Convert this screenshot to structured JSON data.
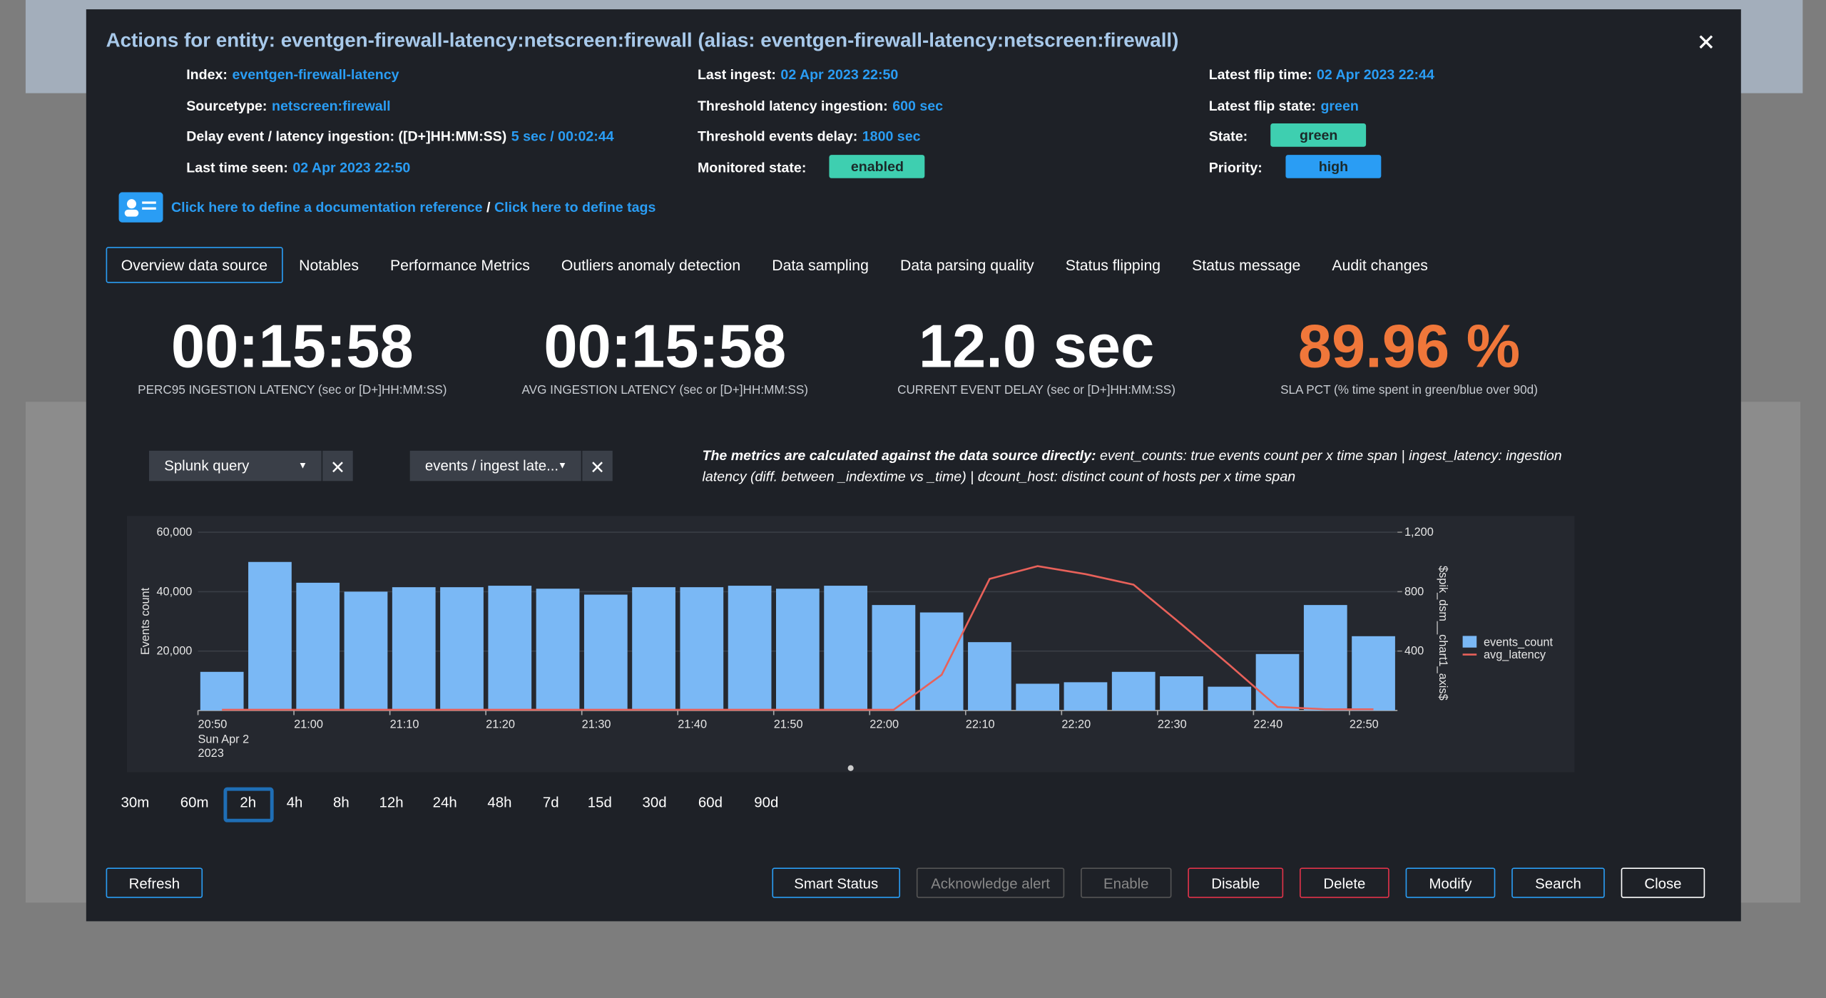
{
  "title": "Actions for entity: eventgen-firewall-latency:netscreen:firewall (alias: eventgen-firewall-latency:netscreen:firewall)",
  "info": {
    "index": {
      "label": "Index:",
      "value": "eventgen-firewall-latency"
    },
    "sourcetype": {
      "label": "Sourcetype:",
      "value": "netscreen:firewall"
    },
    "delay": {
      "label": "Delay event / latency ingestion: ([D+]HH:MM:SS)",
      "value": "5 sec / 00:02:44"
    },
    "last_seen": {
      "label": "Last time seen:",
      "value": "02 Apr 2023 22:50"
    },
    "last_ingest": {
      "label": "Last ingest:",
      "value": "02 Apr 2023 22:50"
    },
    "threshold_latency": {
      "label": "Threshold latency ingestion:",
      "value": "600 sec"
    },
    "threshold_delay": {
      "label": "Threshold events delay:",
      "value": "1800 sec"
    },
    "monitored_state": {
      "label": "Monitored state:",
      "value": "enabled"
    },
    "latest_flip_time": {
      "label": "Latest flip time:",
      "value": "02 Apr 2023 22:44"
    },
    "latest_flip_state": {
      "label": "Latest flip state:",
      "value": "green"
    },
    "state": {
      "label": "State:",
      "value": "green"
    },
    "priority": {
      "label": "Priority:",
      "value": "high"
    }
  },
  "links": {
    "doc": "Click here to define a documentation reference",
    "sep": "/",
    "tags": "Click here to define tags"
  },
  "tabs": [
    "Overview data source",
    "Notables",
    "Performance Metrics",
    "Outliers anomaly detection",
    "Data sampling",
    "Data parsing quality",
    "Status flipping",
    "Status message",
    "Audit changes"
  ],
  "active_tab": 0,
  "kpis": [
    {
      "value": "00:15:58",
      "label": "PERC95 INGESTION LATENCY (sec or [D+]HH:MM:SS)",
      "color": "#ffffff"
    },
    {
      "value": "00:15:58",
      "label": "AVG INGESTION LATENCY (sec or [D+]HH:MM:SS)",
      "color": "#ffffff"
    },
    {
      "value": "12.0 sec",
      "label": "CURRENT EVENT DELAY (sec or [D+]HH:MM:SS)",
      "color": "#ffffff"
    },
    {
      "value": "89.96 %",
      "label": "SLA PCT (% time spent in green/blue over 90d)",
      "color": "#f0773a"
    }
  ],
  "filters": [
    "Splunk query",
    "events / ingest late..."
  ],
  "note": {
    "bold": "The metrics are calculated against the data source directly:",
    "text": " event_counts: true events count per x time span | ingest_latency: ingestion latency (diff. between _indextime vs _time) | dcount_host: distinct count of hosts per x time span"
  },
  "chart_data": {
    "type": "bar",
    "ylabel": "Events count",
    "y2label": "$spik_dsm__chart1_axis$",
    "categories": [
      "20:50",
      null,
      "21:00",
      null,
      "21:10",
      null,
      "21:20",
      null,
      "21:30",
      null,
      "21:40",
      null,
      "21:50",
      null,
      "22:00",
      null,
      "22:10",
      null,
      "22:20",
      null,
      "22:30",
      null,
      "22:40",
      null,
      "22:50"
    ],
    "first_date": [
      "Sun Apr 2",
      "2023"
    ],
    "series": [
      {
        "name": "events_count",
        "color": "#7ab8f5",
        "values": [
          13000,
          50000,
          43000,
          40000,
          41500,
          41500,
          42000,
          41000,
          39000,
          41500,
          41500,
          42000,
          41000,
          42000,
          35500,
          33000,
          23000,
          9000,
          9500,
          13000,
          11500,
          8000,
          19000,
          35500,
          25000
        ]
      },
      {
        "name": "avg_latency",
        "color": "#e8615a",
        "axis": "y2",
        "values": [
          5,
          5,
          5,
          5,
          5,
          5,
          5,
          5,
          5,
          5,
          5,
          5,
          5,
          5,
          5,
          240,
          886,
          972,
          918,
          847,
          580,
          306,
          24,
          8,
          8
        ]
      }
    ],
    "ylim": [
      0,
      60000
    ],
    "yticks": [
      {
        "value": 20000,
        "label": "20,000"
      },
      {
        "value": 40000,
        "label": "40,000"
      },
      {
        "value": 60000,
        "label": "60,000"
      }
    ],
    "y2lim": [
      0,
      1200
    ],
    "y2ticks": [
      400,
      800,
      {
        "value": 1200,
        "label": "1,200"
      }
    ]
  },
  "time_ranges": [
    "30m",
    "60m",
    "2h",
    "4h",
    "8h",
    "12h",
    "24h",
    "48h",
    "7d",
    "15d",
    "30d",
    "60d",
    "90d"
  ],
  "active_range": 2,
  "buttons": [
    "Refresh",
    "Smart Status",
    "Acknowledge alert",
    "Enable",
    "Disable",
    "Delete",
    "Modify",
    "Search",
    "Close"
  ]
}
